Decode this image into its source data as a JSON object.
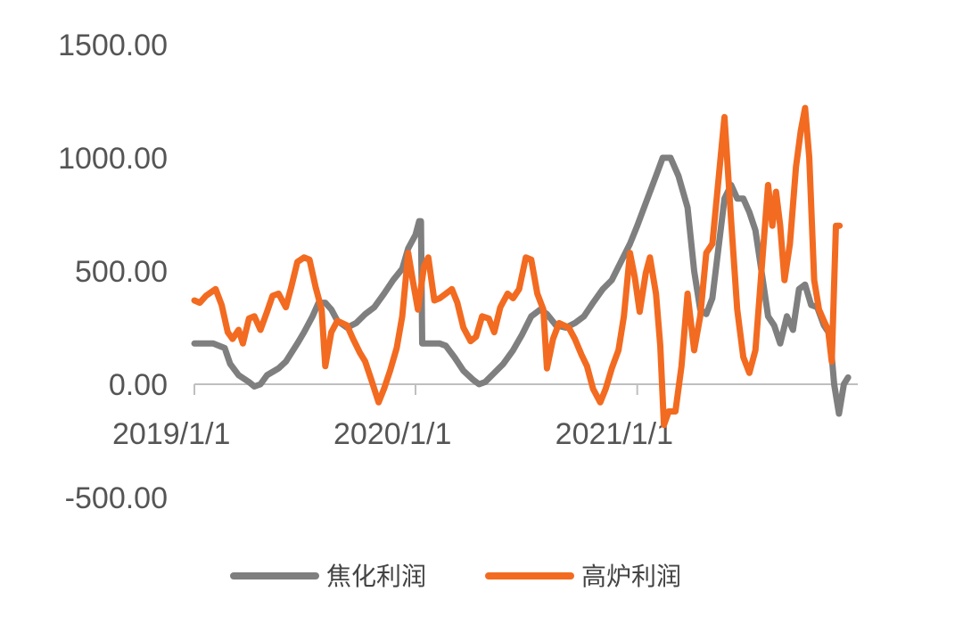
{
  "chart_data": {
    "type": "line",
    "title": "",
    "xlabel": "",
    "ylabel": "",
    "ylim": [
      -500,
      1500
    ],
    "y_ticks": [
      "1500.00",
      "1000.00",
      "500.00",
      "0.00",
      "-500.00"
    ],
    "y_tick_values": [
      1500,
      1000,
      500,
      0,
      -500
    ],
    "x_range": [
      "2019-01-01",
      "2021-12-31"
    ],
    "x_ticks": [
      "2019/1/1",
      "2020/1/1",
      "2021/1/1"
    ],
    "x_tick_dates": [
      "2019-01-01",
      "2020-01-01",
      "2021-01-01"
    ],
    "grid": false,
    "legend_position": "bottom",
    "series": [
      {
        "name": "焦化利润",
        "color": "#7f7f7f",
        "points": [
          [
            "2019-01-01",
            180
          ],
          [
            "2019-02-01",
            180
          ],
          [
            "2019-02-20",
            160
          ],
          [
            "2019-03-01",
            90
          ],
          [
            "2019-03-15",
            40
          ],
          [
            "2019-04-01",
            10
          ],
          [
            "2019-04-10",
            -10
          ],
          [
            "2019-04-20",
            0
          ],
          [
            "2019-05-01",
            40
          ],
          [
            "2019-05-20",
            70
          ],
          [
            "2019-06-01",
            100
          ],
          [
            "2019-06-20",
            180
          ],
          [
            "2019-07-01",
            230
          ],
          [
            "2019-07-15",
            300
          ],
          [
            "2019-07-25",
            360
          ],
          [
            "2019-08-05",
            360
          ],
          [
            "2019-08-15",
            330
          ],
          [
            "2019-08-25",
            280
          ],
          [
            "2019-09-10",
            250
          ],
          [
            "2019-09-25",
            270
          ],
          [
            "2019-10-10",
            310
          ],
          [
            "2019-10-25",
            340
          ],
          [
            "2019-11-10",
            400
          ],
          [
            "2019-11-25",
            460
          ],
          [
            "2019-12-10",
            510
          ],
          [
            "2019-12-20",
            600
          ],
          [
            "2020-01-01",
            660
          ],
          [
            "2020-01-07",
            720
          ],
          [
            "2020-01-10",
            720
          ],
          [
            "2020-01-12",
            180
          ],
          [
            "2020-02-10",
            180
          ],
          [
            "2020-02-20",
            170
          ],
          [
            "2020-03-05",
            120
          ],
          [
            "2020-03-20",
            60
          ],
          [
            "2020-04-05",
            20
          ],
          [
            "2020-04-15",
            0
          ],
          [
            "2020-04-25",
            10
          ],
          [
            "2020-05-10",
            50
          ],
          [
            "2020-05-25",
            90
          ],
          [
            "2020-06-10",
            150
          ],
          [
            "2020-06-25",
            220
          ],
          [
            "2020-07-10",
            300
          ],
          [
            "2020-07-25",
            330
          ],
          [
            "2020-08-05",
            310
          ],
          [
            "2020-08-20",
            260
          ],
          [
            "2020-09-05",
            250
          ],
          [
            "2020-09-20",
            270
          ],
          [
            "2020-10-05",
            300
          ],
          [
            "2020-10-20",
            360
          ],
          [
            "2020-11-05",
            420
          ],
          [
            "2020-11-20",
            460
          ],
          [
            "2020-12-05",
            540
          ],
          [
            "2020-12-20",
            620
          ],
          [
            "2021-01-01",
            700
          ],
          [
            "2021-01-15",
            800
          ],
          [
            "2021-02-01",
            920
          ],
          [
            "2021-02-12",
            1000
          ],
          [
            "2021-02-25",
            1000
          ],
          [
            "2021-03-10",
            920
          ],
          [
            "2021-03-25",
            780
          ],
          [
            "2021-04-05",
            500
          ],
          [
            "2021-04-15",
            330
          ],
          [
            "2021-04-25",
            310
          ],
          [
            "2021-05-05",
            380
          ],
          [
            "2021-05-15",
            600
          ],
          [
            "2021-05-25",
            820
          ],
          [
            "2021-06-05",
            880
          ],
          [
            "2021-06-15",
            820
          ],
          [
            "2021-06-25",
            820
          ],
          [
            "2021-07-05",
            760
          ],
          [
            "2021-07-15",
            680
          ],
          [
            "2021-07-25",
            500
          ],
          [
            "2021-08-05",
            300
          ],
          [
            "2021-08-15",
            260
          ],
          [
            "2021-08-25",
            180
          ],
          [
            "2021-09-05",
            300
          ],
          [
            "2021-09-15",
            240
          ],
          [
            "2021-09-25",
            420
          ],
          [
            "2021-10-05",
            440
          ],
          [
            "2021-10-15",
            350
          ],
          [
            "2021-10-25",
            340
          ],
          [
            "2021-11-05",
            260
          ],
          [
            "2021-11-15",
            220
          ],
          [
            "2021-11-22",
            0
          ],
          [
            "2021-11-30",
            -130
          ],
          [
            "2021-12-08",
            0
          ],
          [
            "2021-12-15",
            30
          ]
        ]
      },
      {
        "name": "高炉利润",
        "color": "#f26b21",
        "points": [
          [
            "2019-01-01",
            370
          ],
          [
            "2019-01-10",
            360
          ],
          [
            "2019-01-20",
            390
          ],
          [
            "2019-02-05",
            420
          ],
          [
            "2019-02-15",
            350
          ],
          [
            "2019-02-25",
            230
          ],
          [
            "2019-03-05",
            200
          ],
          [
            "2019-03-15",
            240
          ],
          [
            "2019-03-22",
            180
          ],
          [
            "2019-04-01",
            290
          ],
          [
            "2019-04-10",
            300
          ],
          [
            "2019-04-20",
            240
          ],
          [
            "2019-05-01",
            320
          ],
          [
            "2019-05-10",
            390
          ],
          [
            "2019-05-20",
            400
          ],
          [
            "2019-06-01",
            340
          ],
          [
            "2019-06-10",
            430
          ],
          [
            "2019-06-20",
            540
          ],
          [
            "2019-07-01",
            560
          ],
          [
            "2019-07-10",
            550
          ],
          [
            "2019-07-20",
            430
          ],
          [
            "2019-07-30",
            330
          ],
          [
            "2019-08-05",
            80
          ],
          [
            "2019-08-15",
            230
          ],
          [
            "2019-08-25",
            280
          ],
          [
            "2019-09-10",
            260
          ],
          [
            "2019-09-20",
            200
          ],
          [
            "2019-10-01",
            140
          ],
          [
            "2019-10-10",
            100
          ],
          [
            "2019-10-20",
            20
          ],
          [
            "2019-11-01",
            -80
          ],
          [
            "2019-11-10",
            -20
          ],
          [
            "2019-11-20",
            60
          ],
          [
            "2019-12-01",
            160
          ],
          [
            "2019-12-10",
            300
          ],
          [
            "2019-12-20",
            580
          ],
          [
            "2019-12-28",
            450
          ],
          [
            "2020-01-05",
            330
          ],
          [
            "2020-01-15",
            520
          ],
          [
            "2020-01-22",
            560
          ],
          [
            "2020-02-01",
            370
          ],
          [
            "2020-02-10",
            380
          ],
          [
            "2020-02-20",
            400
          ],
          [
            "2020-03-01",
            420
          ],
          [
            "2020-03-10",
            360
          ],
          [
            "2020-03-20",
            250
          ],
          [
            "2020-04-01",
            190
          ],
          [
            "2020-04-10",
            210
          ],
          [
            "2020-04-20",
            300
          ],
          [
            "2020-05-01",
            290
          ],
          [
            "2020-05-10",
            230
          ],
          [
            "2020-05-20",
            340
          ],
          [
            "2020-06-01",
            400
          ],
          [
            "2020-06-10",
            380
          ],
          [
            "2020-06-20",
            420
          ],
          [
            "2020-07-01",
            560
          ],
          [
            "2020-07-10",
            550
          ],
          [
            "2020-07-20",
            400
          ],
          [
            "2020-07-30",
            330
          ],
          [
            "2020-08-05",
            70
          ],
          [
            "2020-08-15",
            200
          ],
          [
            "2020-08-25",
            270
          ],
          [
            "2020-09-10",
            250
          ],
          [
            "2020-09-20",
            200
          ],
          [
            "2020-10-01",
            130
          ],
          [
            "2020-10-10",
            80
          ],
          [
            "2020-10-20",
            -20
          ],
          [
            "2020-11-01",
            -80
          ],
          [
            "2020-11-10",
            -20
          ],
          [
            "2020-11-20",
            70
          ],
          [
            "2020-12-01",
            150
          ],
          [
            "2020-12-10",
            300
          ],
          [
            "2020-12-20",
            580
          ],
          [
            "2020-12-28",
            470
          ],
          [
            "2021-01-05",
            320
          ],
          [
            "2021-01-15",
            490
          ],
          [
            "2021-01-22",
            560
          ],
          [
            "2021-02-01",
            400
          ],
          [
            "2021-02-08",
            170
          ],
          [
            "2021-02-14",
            -180
          ],
          [
            "2021-02-22",
            -120
          ],
          [
            "2021-03-05",
            -120
          ],
          [
            "2021-03-15",
            80
          ],
          [
            "2021-03-25",
            400
          ],
          [
            "2021-04-05",
            150
          ],
          [
            "2021-04-15",
            300
          ],
          [
            "2021-04-25",
            580
          ],
          [
            "2021-05-05",
            620
          ],
          [
            "2021-05-15",
            900
          ],
          [
            "2021-05-25",
            1180
          ],
          [
            "2021-06-05",
            720
          ],
          [
            "2021-06-15",
            330
          ],
          [
            "2021-06-25",
            120
          ],
          [
            "2021-07-05",
            50
          ],
          [
            "2021-07-15",
            150
          ],
          [
            "2021-07-25",
            500
          ],
          [
            "2021-08-05",
            880
          ],
          [
            "2021-08-12",
            700
          ],
          [
            "2021-08-18",
            850
          ],
          [
            "2021-08-25",
            700
          ],
          [
            "2021-09-01",
            460
          ],
          [
            "2021-09-10",
            620
          ],
          [
            "2021-09-20",
            960
          ],
          [
            "2021-09-28",
            1120
          ],
          [
            "2021-10-05",
            1220
          ],
          [
            "2021-10-12",
            1000
          ],
          [
            "2021-10-20",
            460
          ],
          [
            "2021-10-28",
            330
          ],
          [
            "2021-11-05",
            280
          ],
          [
            "2021-11-12",
            240
          ],
          [
            "2021-11-18",
            100
          ],
          [
            "2021-11-25",
            700
          ],
          [
            "2021-12-01",
            700
          ]
        ]
      }
    ]
  }
}
